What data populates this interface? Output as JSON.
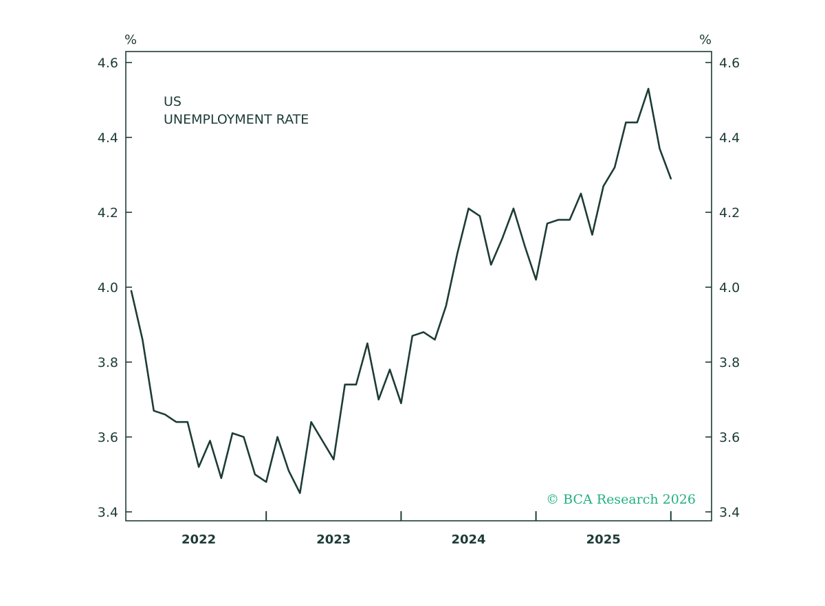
{
  "colors": {
    "line": "#1d3b36",
    "axis": "#1d3b36",
    "credit": "#22b07d"
  },
  "credit": "© BCA Research 2026",
  "chart_data": {
    "type": "line",
    "title": "US",
    "subtitle": "UNEMPLOYMENT RATE",
    "left_unit": "%",
    "right_unit": "%",
    "xlabel": "",
    "ylabel": "",
    "ylim": [
      3.4,
      4.6
    ],
    "yticks": [
      3.4,
      3.6,
      3.8,
      4.0,
      4.2,
      4.4,
      4.6
    ],
    "ytick_labels": [
      "3.4",
      "3.6",
      "3.8",
      "4.0",
      "4.2",
      "4.4",
      "4.6"
    ],
    "xlim": [
      "2021-07",
      "2026-02"
    ],
    "year_labels": [
      {
        "label": "2022",
        "center": "2022-01"
      },
      {
        "label": "2023",
        "center": "2023-01"
      },
      {
        "label": "2024",
        "center": "2024-01"
      },
      {
        "label": "2025",
        "center": "2025-01"
      }
    ],
    "year_boundaries": [
      "2022-07",
      "2023-07",
      "2024-07",
      "2025-07"
    ],
    "grid": false,
    "series": [
      {
        "x": [
          "2021-07",
          "2021-08",
          "2021-09",
          "2021-10",
          "2021-11",
          "2021-12",
          "2022-01",
          "2022-02",
          "2022-03",
          "2022-04",
          "2022-05",
          "2022-06",
          "2022-07",
          "2022-08",
          "2022-09",
          "2022-10",
          "2022-11",
          "2022-12",
          "2023-01",
          "2023-02",
          "2023-03",
          "2023-04",
          "2023-05",
          "2023-06",
          "2023-07",
          "2023-08",
          "2023-09",
          "2023-10",
          "2023-11",
          "2023-12",
          "2024-01",
          "2024-02",
          "2024-03",
          "2024-04",
          "2024-05",
          "2024-06",
          "2024-07",
          "2024-08",
          "2024-09",
          "2024-10",
          "2024-11",
          "2024-12",
          "2025-01",
          "2025-02",
          "2025-03",
          "2025-04",
          "2025-05",
          "2025-06",
          "2025-07",
          "2025-08"
        ],
        "values": [
          3.99,
          3.86,
          3.67,
          3.66,
          3.64,
          3.64,
          3.52,
          3.59,
          3.49,
          3.61,
          3.6,
          3.5,
          3.48,
          3.6,
          3.51,
          3.45,
          3.64,
          3.59,
          3.54,
          3.74,
          3.74,
          3.85,
          3.7,
          3.78,
          3.69,
          3.87,
          3.88,
          3.86,
          3.95,
          4.09,
          4.21,
          4.19,
          4.06,
          4.13,
          4.21,
          4.11,
          4.02,
          4.17,
          4.18,
          4.18,
          4.25,
          4.14,
          4.27,
          4.32,
          4.44,
          4.44,
          4.53,
          4.37,
          4.29,
          null
        ]
      }
    ]
  }
}
